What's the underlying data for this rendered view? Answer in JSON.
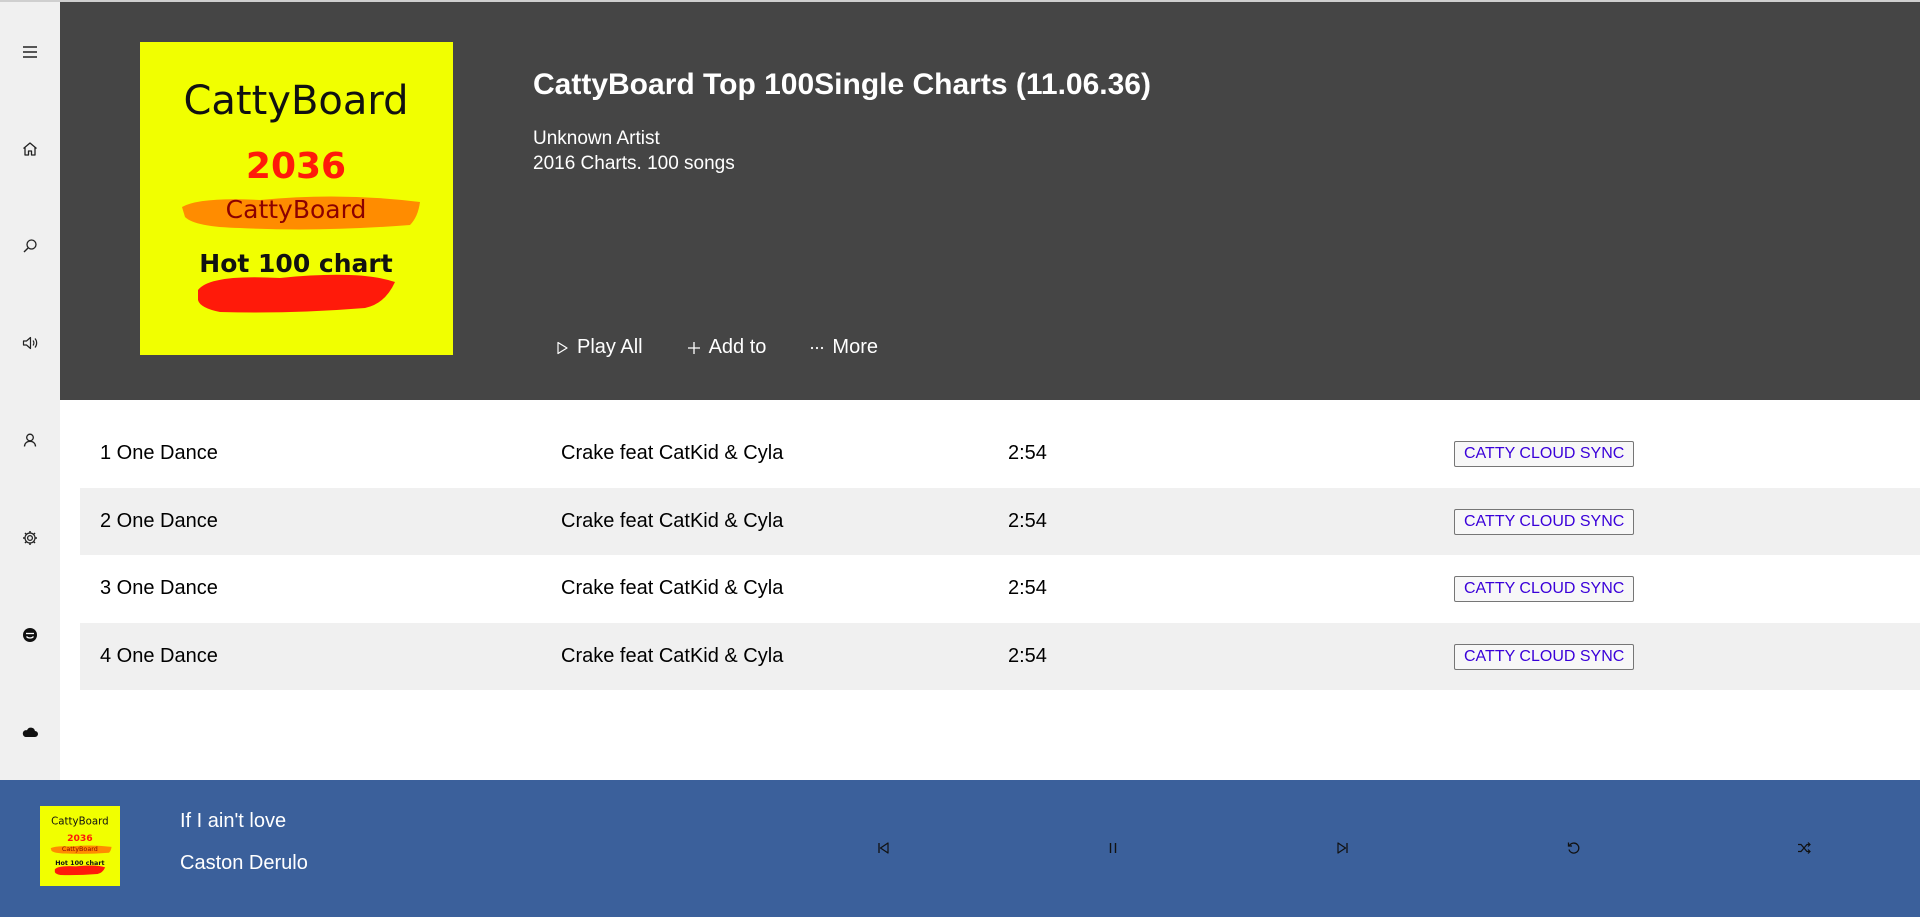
{
  "sidebar": {
    "items": [
      {
        "name": "menu-icon"
      },
      {
        "name": "home-icon"
      },
      {
        "name": "search-icon"
      },
      {
        "name": "speaker-icon"
      },
      {
        "name": "user-icon"
      },
      {
        "name": "gear-icon"
      },
      {
        "name": "smiley-icon"
      },
      {
        "name": "cloud-icon"
      }
    ]
  },
  "album": {
    "cover_text": {
      "brand": "CattyBoard",
      "year": "2036",
      "brand_small": "CattyBoard",
      "chart": "Hot 100 chart"
    },
    "title": "CattyBoard Top 100Single Charts (11.06.36)",
    "artist": "Unknown Artist",
    "meta": "2016 Charts. 100 songs"
  },
  "actions": {
    "play_all": "Play All",
    "add_to": "Add to",
    "more": "More"
  },
  "tracks": [
    {
      "title": "1 One Dance",
      "artist": "Crake feat CatKid & Cyla",
      "duration": "2:54",
      "button": "CATTY CLOUD SYNC"
    },
    {
      "title": "2 One Dance",
      "artist": "Crake feat CatKid & Cyla",
      "duration": "2:54",
      "button": "CATTY CLOUD SYNC"
    },
    {
      "title": "3 One Dance",
      "artist": "Crake feat CatKid & Cyla",
      "duration": "2:54",
      "button": "CATTY CLOUD SYNC"
    },
    {
      "title": "4 One Dance",
      "artist": "Crake feat CatKid & Cyla",
      "duration": "2:54",
      "button": "CATTY CLOUD SYNC"
    }
  ],
  "player": {
    "title": "If I ain't love",
    "artist": "Caston Derulo",
    "controls": [
      "previous-icon",
      "pause-icon",
      "next-icon",
      "repeat-icon",
      "shuffle-icon"
    ]
  },
  "colors": {
    "header_bg": "#454545",
    "sidebar_bg": "#f0f0f0",
    "player_bg": "#3b609b",
    "cover_yellow": "#f1ff00",
    "cover_red": "#ff1a0a",
    "cover_orange": "#ff8c00",
    "button_text": "#3a00d9"
  }
}
